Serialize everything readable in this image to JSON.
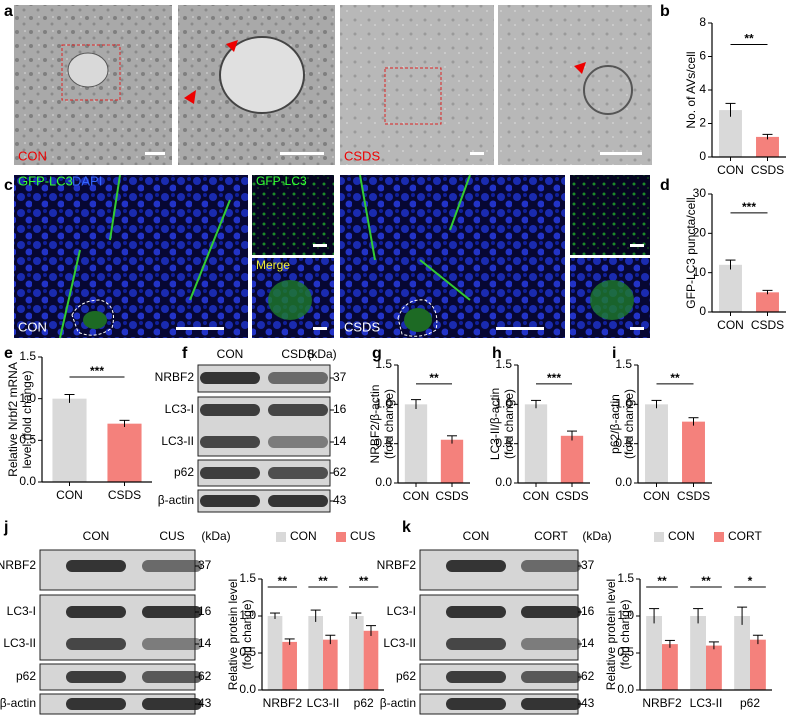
{
  "panel_letters": [
    "a",
    "b",
    "c",
    "d",
    "e",
    "f",
    "g",
    "h",
    "i",
    "j",
    "k"
  ],
  "images": {
    "em_labels": [
      "CON",
      "CSDS"
    ],
    "fluor_labels": [
      "GFP-LC3",
      "DAPI",
      "GFP-LC3",
      "Merge",
      "CON",
      "CSDS"
    ]
  },
  "blots": [
    {
      "lanes": [
        "CON",
        "CSDS"
      ],
      "unit": "(kDa)",
      "rows": [
        {
          "name": "NRBF2",
          "kda": 37
        },
        {
          "name": "LC3-I",
          "kda": 16
        },
        {
          "name": "LC3-II",
          "kda": 14
        },
        {
          "name": "p62",
          "kda": 62
        },
        {
          "name": "β-actin",
          "kda": 43
        }
      ]
    },
    {
      "lanes": [
        "CON",
        "CUS"
      ],
      "unit": "(kDa)",
      "rows": [
        {
          "name": "NRBF2",
          "kda": 37
        },
        {
          "name": "LC3-I",
          "kda": 16
        },
        {
          "name": "LC3-II",
          "kda": 14
        },
        {
          "name": "p62",
          "kda": 62
        },
        {
          "name": "β-actin",
          "kda": 43
        }
      ]
    },
    {
      "lanes": [
        "CON",
        "CORT"
      ],
      "unit": "(kDa)",
      "rows": [
        {
          "name": "NRBF2",
          "kda": 37
        },
        {
          "name": "LC3-I",
          "kda": 16
        },
        {
          "name": "LC3-II",
          "kda": 14
        },
        {
          "name": "p62",
          "kda": 62
        },
        {
          "name": "β-actin",
          "kda": 43
        }
      ]
    }
  ],
  "chart_data": [
    {
      "type": "bar",
      "ylabel": [
        "No. of AVs/cell"
      ],
      "categories": [
        "CON",
        "CSDS"
      ],
      "values": [
        2.8,
        1.2
      ],
      "errors": [
        0.4,
        0.15
      ],
      "colors": [
        "#d9d9d9",
        "#f4817c"
      ],
      "ylim": [
        0,
        8
      ],
      "yticks": [
        0,
        2,
        4,
        6,
        8
      ],
      "annotation": "**"
    },
    {
      "type": "bar",
      "ylabel": [
        "GFP-LC3 puncta/cell"
      ],
      "categories": [
        "CON",
        "CSDS"
      ],
      "values": [
        12,
        5
      ],
      "errors": [
        1.2,
        0.5
      ],
      "colors": [
        "#d9d9d9",
        "#f4817c"
      ],
      "ylim": [
        0,
        30
      ],
      "yticks": [
        0,
        10,
        20,
        30
      ],
      "annotation": "***"
    },
    {
      "type": "bar",
      "ylabel": [
        "Relative Nrbf2 mRNA",
        "level (fold change)"
      ],
      "categories": [
        "CON",
        "CSDS"
      ],
      "values": [
        1.0,
        0.7
      ],
      "errors": [
        0.05,
        0.04
      ],
      "colors": [
        "#d9d9d9",
        "#f4817c"
      ],
      "ylim": [
        0,
        1.5
      ],
      "yticks": [
        {
          "value": 0,
          "label": "0.0"
        },
        0.5,
        {
          "value": 1,
          "label": "1.0"
        },
        1.5
      ],
      "annotation": "***"
    },
    {
      "type": "bar",
      "ylabel": [
        "NRBF2/β-actin",
        "(fold change)"
      ],
      "categories": [
        "CON",
        "CSDS"
      ],
      "values": [
        1.0,
        0.55
      ],
      "errors": [
        0.06,
        0.05
      ],
      "colors": [
        "#d9d9d9",
        "#f4817c"
      ],
      "ylim": [
        0,
        1.5
      ],
      "yticks": [
        {
          "value": 0,
          "label": "0.0"
        },
        0.5,
        {
          "value": 1,
          "label": "1.0"
        },
        1.5
      ],
      "annotation": "**"
    },
    {
      "type": "bar",
      "ylabel": [
        "LC3-II/β-actin",
        "(fold change)"
      ],
      "categories": [
        "CON",
        "CSDS"
      ],
      "values": [
        1.0,
        0.6
      ],
      "errors": [
        0.05,
        0.06
      ],
      "colors": [
        "#d9d9d9",
        "#f4817c"
      ],
      "ylim": [
        0,
        1.5
      ],
      "yticks": [
        {
          "value": 0,
          "label": "0.0"
        },
        0.5,
        {
          "value": 1,
          "label": "1.0"
        },
        1.5
      ],
      "annotation": "***"
    },
    {
      "type": "bar",
      "ylabel": [
        "p62/β-actin",
        "(fold change)"
      ],
      "categories": [
        "CON",
        "CSDS"
      ],
      "values": [
        1.0,
        0.78
      ],
      "errors": [
        0.05,
        0.05
      ],
      "colors": [
        "#d9d9d9",
        "#f4817c"
      ],
      "ylim": [
        0,
        1.5
      ],
      "yticks": [
        {
          "value": 0,
          "label": "0.0"
        },
        0.5,
        {
          "value": 1,
          "label": "1.0"
        },
        1.5
      ],
      "annotation": "**"
    },
    {
      "type": "grouped-bar",
      "ylabel": [
        "Relative protein level",
        "(fold change)"
      ],
      "categories": [
        "NRBF2",
        "LC3-II",
        "p62"
      ],
      "series": [
        {
          "name": "CON",
          "color": "#d9d9d9",
          "values": [
            1.0,
            1.0,
            1.0
          ],
          "errors": [
            0.04,
            0.08,
            0.04
          ]
        },
        {
          "name": "CUS",
          "color": "#f4817c",
          "values": [
            0.65,
            0.68,
            0.8
          ],
          "errors": [
            0.04,
            0.06,
            0.07
          ]
        }
      ],
      "ylim": [
        0,
        1.5
      ],
      "yticks": [
        {
          "value": 0,
          "label": "0.0"
        },
        0.5,
        {
          "value": 1,
          "label": "1.0"
        },
        1.5
      ],
      "annotations": [
        "**",
        "**",
        "**"
      ]
    },
    {
      "type": "grouped-bar",
      "ylabel": [
        "Relative  protein level",
        "(fold change)"
      ],
      "categories": [
        "NRBF2",
        "LC3-II",
        "p62"
      ],
      "series": [
        {
          "name": "CON",
          "color": "#d9d9d9",
          "values": [
            1.0,
            1.0,
            1.0
          ],
          "errors": [
            0.1,
            0.1,
            0.12
          ]
        },
        {
          "name": "CORT",
          "color": "#f4817c",
          "values": [
            0.62,
            0.6,
            0.68
          ],
          "errors": [
            0.05,
            0.05,
            0.06
          ]
        }
      ],
      "ylim": [
        0,
        1.5
      ],
      "yticks": [
        {
          "value": 0,
          "label": "0.0"
        },
        0.5,
        {
          "value": 1,
          "label": "1.0"
        },
        1.5
      ],
      "annotations": [
        "**",
        "**",
        "*"
      ]
    }
  ]
}
